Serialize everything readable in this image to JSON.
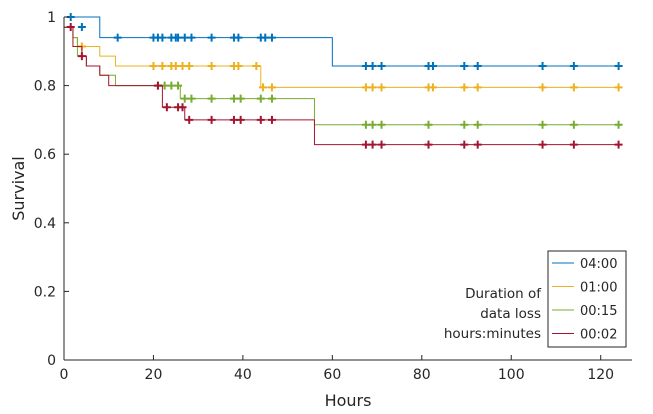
{
  "chart_data": {
    "type": "line",
    "subtype": "kaplan-meier-step",
    "title": "",
    "xlabel": "Hours",
    "ylabel": "Survival",
    "xlim": [
      0,
      127
    ],
    "ylim": [
      0,
      1
    ],
    "xticks": [
      0,
      20,
      40,
      60,
      80,
      100,
      120
    ],
    "yticks": [
      0,
      0.2,
      0.4,
      0.6,
      0.8,
      1
    ],
    "ytick_labels": [
      "0",
      "0.2",
      "0.4",
      "0.6",
      "0.8",
      "1"
    ],
    "grid": false,
    "legend": {
      "placement": "bottom-right",
      "title_lines": [
        "Duration of",
        "data loss",
        "hours:minutes"
      ]
    },
    "series": [
      {
        "name": "04:00",
        "color": "#0072BD",
        "steps": [
          [
            0,
            1.0
          ],
          [
            8,
            0.94
          ],
          [
            60,
            0.857
          ]
        ],
        "end_x": 124,
        "censored": [
          [
            1.5,
            1.0
          ],
          [
            4,
            0.971
          ],
          [
            12,
            0.94
          ],
          [
            20,
            0.94
          ],
          [
            21,
            0.94
          ],
          [
            22,
            0.94
          ],
          [
            24,
            0.94
          ],
          [
            25,
            0.94
          ],
          [
            25.5,
            0.94
          ],
          [
            27,
            0.94
          ],
          [
            28.5,
            0.94
          ],
          [
            33,
            0.94
          ],
          [
            38,
            0.94
          ],
          [
            39,
            0.94
          ],
          [
            44,
            0.94
          ],
          [
            45,
            0.94
          ],
          [
            46.5,
            0.94
          ],
          [
            67.5,
            0.857
          ],
          [
            69,
            0.857
          ],
          [
            71,
            0.857
          ],
          [
            81.5,
            0.857
          ],
          [
            82.5,
            0.857
          ],
          [
            89.5,
            0.857
          ],
          [
            92.5,
            0.857
          ],
          [
            107,
            0.857
          ],
          [
            114,
            0.857
          ],
          [
            124,
            0.857
          ]
        ]
      },
      {
        "name": "01:00",
        "color": "#EDB120",
        "steps": [
          [
            0,
            0.97
          ],
          [
            2,
            0.94
          ],
          [
            3,
            0.914
          ],
          [
            8,
            0.886
          ],
          [
            11.5,
            0.857
          ],
          [
            44,
            0.795
          ]
        ],
        "end_x": 124,
        "censored": [
          [
            4,
            0.914
          ],
          [
            20,
            0.857
          ],
          [
            22,
            0.857
          ],
          [
            24,
            0.857
          ],
          [
            25,
            0.857
          ],
          [
            26.5,
            0.857
          ],
          [
            28,
            0.857
          ],
          [
            33,
            0.857
          ],
          [
            38,
            0.857
          ],
          [
            39,
            0.857
          ],
          [
            43,
            0.857
          ],
          [
            44.5,
            0.795
          ],
          [
            46.5,
            0.795
          ],
          [
            67.5,
            0.795
          ],
          [
            69,
            0.795
          ],
          [
            71,
            0.795
          ],
          [
            81.5,
            0.795
          ],
          [
            82.5,
            0.795
          ],
          [
            89.5,
            0.795
          ],
          [
            92.5,
            0.795
          ],
          [
            107,
            0.795
          ],
          [
            114,
            0.795
          ],
          [
            124,
            0.795
          ]
        ]
      },
      {
        "name": "00:15",
        "color": "#77AC30",
        "steps": [
          [
            0,
            0.97
          ],
          [
            2,
            0.94
          ],
          [
            3,
            0.886
          ],
          [
            5,
            0.857
          ],
          [
            8,
            0.83
          ],
          [
            11.5,
            0.8
          ],
          [
            26,
            0.762
          ],
          [
            56,
            0.686
          ]
        ],
        "end_x": 124,
        "censored": [
          [
            21,
            0.8
          ],
          [
            22.5,
            0.8
          ],
          [
            24,
            0.8
          ],
          [
            25.5,
            0.8
          ],
          [
            27,
            0.762
          ],
          [
            28.5,
            0.762
          ],
          [
            33,
            0.762
          ],
          [
            38,
            0.762
          ],
          [
            39.5,
            0.762
          ],
          [
            44,
            0.762
          ],
          [
            46.5,
            0.762
          ],
          [
            67.5,
            0.686
          ],
          [
            69,
            0.686
          ],
          [
            71,
            0.686
          ],
          [
            81.5,
            0.686
          ],
          [
            89.5,
            0.686
          ],
          [
            92.5,
            0.686
          ],
          [
            107,
            0.686
          ],
          [
            114,
            0.686
          ],
          [
            124,
            0.686
          ]
        ]
      },
      {
        "name": "00:02",
        "color": "#A2142F",
        "steps": [
          [
            0,
            0.97
          ],
          [
            2,
            0.914
          ],
          [
            4,
            0.886
          ],
          [
            5,
            0.857
          ],
          [
            8,
            0.83
          ],
          [
            10,
            0.8
          ],
          [
            22,
            0.737
          ],
          [
            27,
            0.7
          ],
          [
            56,
            0.628
          ]
        ],
        "end_x": 124,
        "censored": [
          [
            1.5,
            0.971
          ],
          [
            4,
            0.886
          ],
          [
            21,
            0.8
          ],
          [
            23,
            0.737
          ],
          [
            25.5,
            0.737
          ],
          [
            26.5,
            0.737
          ],
          [
            28,
            0.7
          ],
          [
            33,
            0.7
          ],
          [
            38,
            0.7
          ],
          [
            39.5,
            0.7
          ],
          [
            44,
            0.7
          ],
          [
            46.5,
            0.7
          ],
          [
            67.5,
            0.628
          ],
          [
            69,
            0.628
          ],
          [
            71,
            0.628
          ],
          [
            81.5,
            0.628
          ],
          [
            89.5,
            0.628
          ],
          [
            92.5,
            0.628
          ],
          [
            107,
            0.628
          ],
          [
            114,
            0.628
          ],
          [
            124,
            0.628
          ]
        ]
      }
    ]
  }
}
